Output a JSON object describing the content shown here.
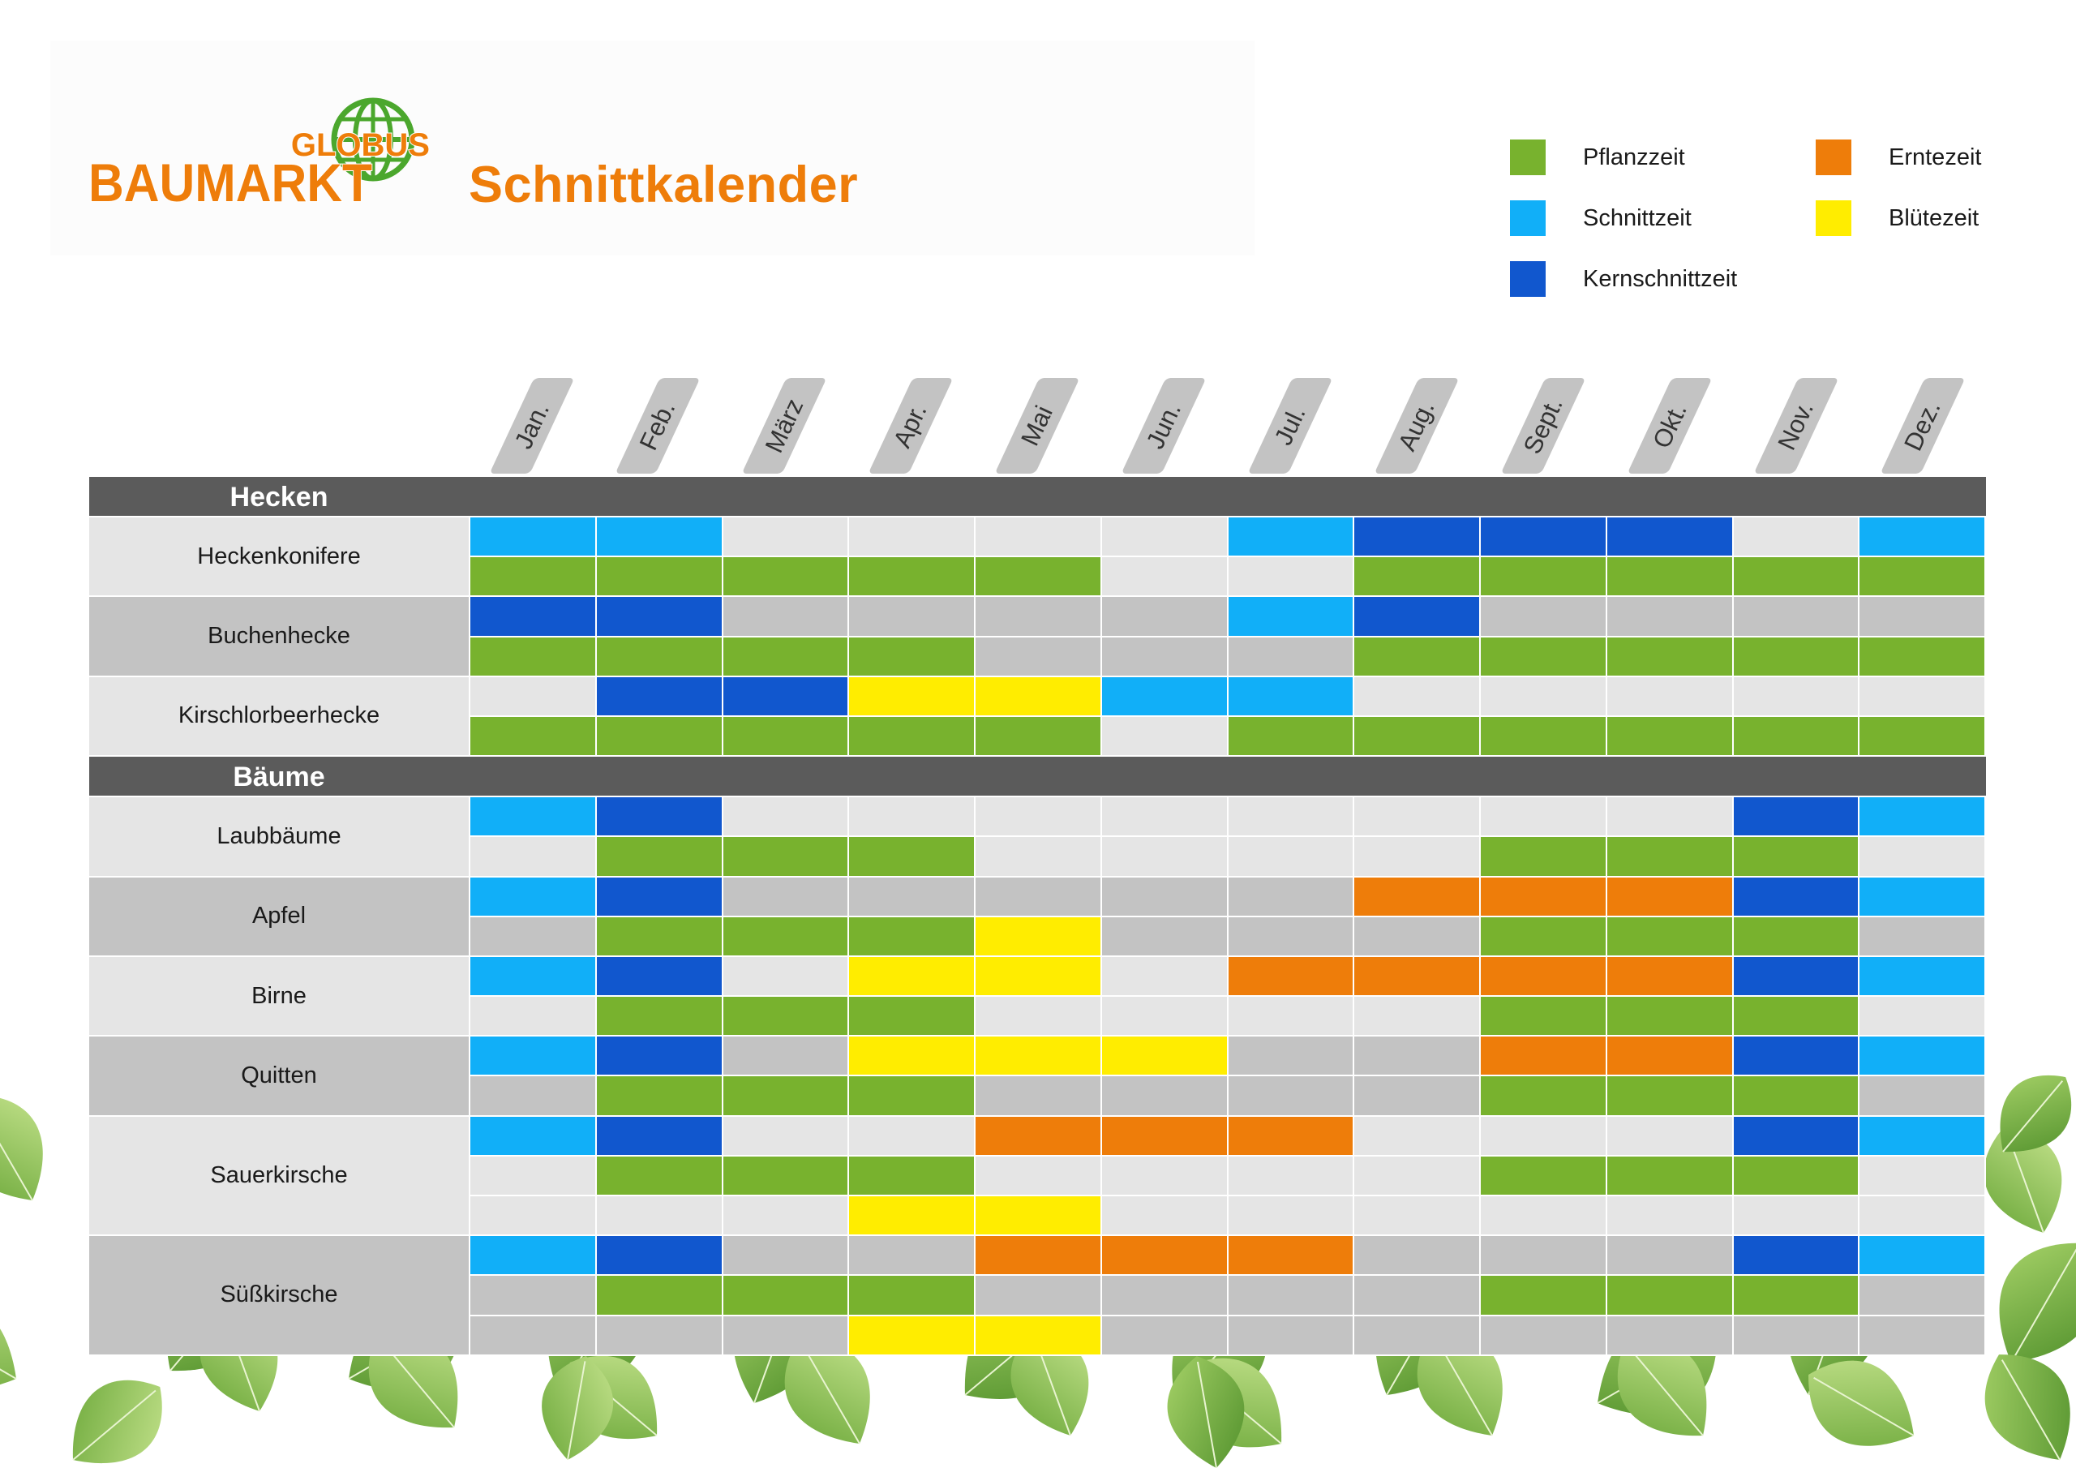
{
  "header": {
    "logo_top": "GLOBUS",
    "logo_main": "BAUMARKT",
    "title": "Schnittkalender"
  },
  "legend": [
    {
      "key": "P",
      "label": "Pflanzzeit",
      "color": "#78b22e"
    },
    {
      "key": "E",
      "label": "Erntezeit",
      "color": "#ee7d0a"
    },
    {
      "key": "S",
      "label": "Schnittzeit",
      "color": "#11aff8"
    },
    {
      "key": "Y",
      "label": "Blütezeit",
      "color": "#ffed00"
    },
    {
      "key": "K",
      "label": "Kernschnittzeit",
      "color": "#1157ce"
    }
  ],
  "months": [
    "Jan.",
    "Feb.",
    "März",
    "Apr.",
    "Mai",
    "Jun.",
    "Jul.",
    "Aug.",
    "Sept.",
    "Okt.",
    "Nov.",
    "Dez."
  ],
  "colors": {
    "P": "#78b22e",
    "S": "#11aff8",
    "K": "#1157ce",
    "E": "#ee7d0a",
    "Y": "#ffed00",
    "light": "#e5e5e5",
    "dark": "#c3c3c3",
    "section": "#5b5b5b",
    "brand_orange": "#ee7d0a",
    "globe_green": "#4ba72d"
  },
  "sections": [
    {
      "title": "Hecken",
      "groups": [
        {
          "name": "Heckenkonifere",
          "rows": [
            [
              "S",
              "S",
              "-",
              "-",
              "-",
              "-",
              "S",
              "K",
              "K",
              "K",
              "-",
              "S"
            ],
            [
              "P",
              "P",
              "P",
              "P",
              "P",
              "-",
              "-",
              "P",
              "P",
              "P",
              "P",
              "P"
            ]
          ]
        },
        {
          "name": "Buchenhecke",
          "rows": [
            [
              "K",
              "K",
              "-",
              "-",
              "-",
              "-",
              "S",
              "K",
              "-",
              "-",
              "-",
              "-"
            ],
            [
              "P",
              "P",
              "P",
              "P",
              "-",
              "-",
              "-",
              "P",
              "P",
              "P",
              "P",
              "P"
            ]
          ]
        },
        {
          "name": "Kirschlorbeerhecke",
          "rows": [
            [
              "-",
              "K",
              "K",
              "Y",
              "Y",
              "S",
              "S",
              "-",
              "-",
              "-",
              "-",
              "-"
            ],
            [
              "P",
              "P",
              "P",
              "P",
              "P",
              "-",
              "P",
              "P",
              "P",
              "P",
              "P",
              "P"
            ]
          ]
        }
      ]
    },
    {
      "title": "Bäume",
      "groups": [
        {
          "name": "Laubbäume",
          "rows": [
            [
              "S",
              "K",
              "-",
              "-",
              "-",
              "-",
              "-",
              "-",
              "-",
              "-",
              "K",
              "S"
            ],
            [
              "-",
              "P",
              "P",
              "P",
              "-",
              "-",
              "-",
              "-",
              "P",
              "P",
              "P",
              "-"
            ]
          ]
        },
        {
          "name": "Apfel",
          "rows": [
            [
              "S",
              "K",
              "-",
              "-",
              "-",
              "-",
              "-",
              "E",
              "E",
              "E",
              "K",
              "S"
            ],
            [
              "-",
              "P",
              "P",
              "P",
              "Y",
              "-",
              "-",
              "-",
              "P",
              "P",
              "P",
              "-"
            ]
          ]
        },
        {
          "name": "Birne",
          "rows": [
            [
              "S",
              "K",
              "-",
              "Y",
              "Y",
              "-",
              "E",
              "E",
              "E",
              "E",
              "K",
              "S"
            ],
            [
              "-",
              "P",
              "P",
              "P",
              "-",
              "-",
              "-",
              "-",
              "P",
              "P",
              "P",
              "-"
            ]
          ]
        },
        {
          "name": "Quitten",
          "rows": [
            [
              "S",
              "K",
              "-",
              "Y",
              "Y",
              "Y",
              "-",
              "-",
              "E",
              "E",
              "K",
              "S"
            ],
            [
              "-",
              "P",
              "P",
              "P",
              "-",
              "-",
              "-",
              "-",
              "P",
              "P",
              "P",
              "-"
            ]
          ]
        },
        {
          "name": "Sauerkirsche",
          "rows": [
            [
              "S",
              "K",
              "-",
              "-",
              "E",
              "E",
              "E",
              "-",
              "-",
              "-",
              "K",
              "S"
            ],
            [
              "-",
              "P",
              "P",
              "P",
              "-",
              "-",
              "-",
              "-",
              "P",
              "P",
              "P",
              "-"
            ],
            [
              "-",
              "-",
              "-",
              "Y",
              "Y",
              "-",
              "-",
              "-",
              "-",
              "-",
              "-",
              "-"
            ]
          ]
        },
        {
          "name": "Süßkirsche",
          "rows": [
            [
              "S",
              "K",
              "-",
              "-",
              "E",
              "E",
              "E",
              "-",
              "-",
              "-",
              "K",
              "S"
            ],
            [
              "-",
              "P",
              "P",
              "P",
              "-",
              "-",
              "-",
              "-",
              "P",
              "P",
              "P",
              "-"
            ],
            [
              "-",
              "-",
              "-",
              "Y",
              "Y",
              "-",
              "-",
              "-",
              "-",
              "-",
              "-",
              "-"
            ]
          ]
        }
      ]
    }
  ]
}
